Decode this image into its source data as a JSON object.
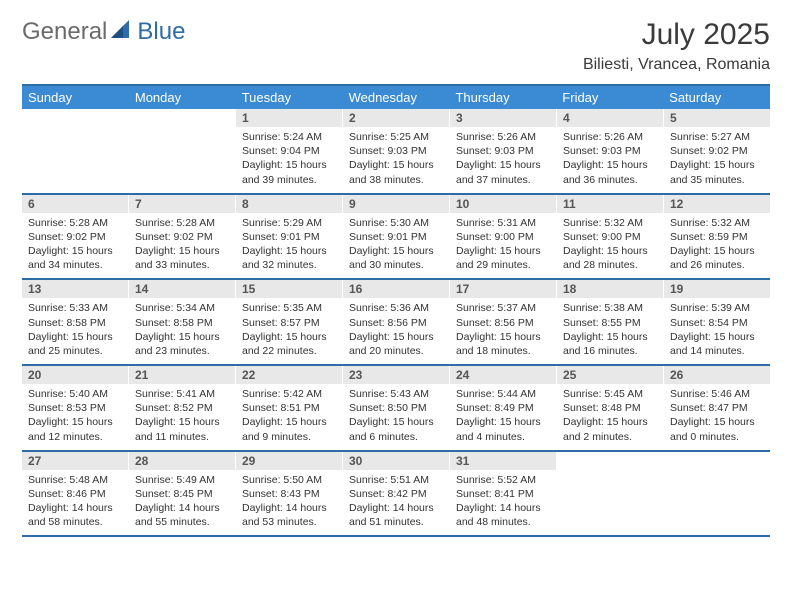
{
  "brand": {
    "text1": "General",
    "text2": "Blue"
  },
  "header": {
    "month_title": "July 2025",
    "location": "Biliesti, Vrancea, Romania"
  },
  "colors": {
    "header_bar": "#3b8bd4",
    "accent_border": "#2e6ca8",
    "daynum_bg": "#e8e8e8",
    "text": "#333333",
    "logo_gray": "#6b6b6b",
    "logo_blue": "#2e6ca8",
    "background": "#ffffff"
  },
  "layout": {
    "columns": 7,
    "rows": 5,
    "cell_font_pt": 10.5,
    "header_font_pt": 13
  },
  "weekdays": [
    "Sunday",
    "Monday",
    "Tuesday",
    "Wednesday",
    "Thursday",
    "Friday",
    "Saturday"
  ],
  "weeks": [
    [
      {
        "empty": true
      },
      {
        "empty": true
      },
      {
        "n": "1",
        "sunrise": "Sunrise: 5:24 AM",
        "sunset": "Sunset: 9:04 PM",
        "d1": "Daylight: 15 hours",
        "d2": "and 39 minutes."
      },
      {
        "n": "2",
        "sunrise": "Sunrise: 5:25 AM",
        "sunset": "Sunset: 9:03 PM",
        "d1": "Daylight: 15 hours",
        "d2": "and 38 minutes."
      },
      {
        "n": "3",
        "sunrise": "Sunrise: 5:26 AM",
        "sunset": "Sunset: 9:03 PM",
        "d1": "Daylight: 15 hours",
        "d2": "and 37 minutes."
      },
      {
        "n": "4",
        "sunrise": "Sunrise: 5:26 AM",
        "sunset": "Sunset: 9:03 PM",
        "d1": "Daylight: 15 hours",
        "d2": "and 36 minutes."
      },
      {
        "n": "5",
        "sunrise": "Sunrise: 5:27 AM",
        "sunset": "Sunset: 9:02 PM",
        "d1": "Daylight: 15 hours",
        "d2": "and 35 minutes."
      }
    ],
    [
      {
        "n": "6",
        "sunrise": "Sunrise: 5:28 AM",
        "sunset": "Sunset: 9:02 PM",
        "d1": "Daylight: 15 hours",
        "d2": "and 34 minutes."
      },
      {
        "n": "7",
        "sunrise": "Sunrise: 5:28 AM",
        "sunset": "Sunset: 9:02 PM",
        "d1": "Daylight: 15 hours",
        "d2": "and 33 minutes."
      },
      {
        "n": "8",
        "sunrise": "Sunrise: 5:29 AM",
        "sunset": "Sunset: 9:01 PM",
        "d1": "Daylight: 15 hours",
        "d2": "and 32 minutes."
      },
      {
        "n": "9",
        "sunrise": "Sunrise: 5:30 AM",
        "sunset": "Sunset: 9:01 PM",
        "d1": "Daylight: 15 hours",
        "d2": "and 30 minutes."
      },
      {
        "n": "10",
        "sunrise": "Sunrise: 5:31 AM",
        "sunset": "Sunset: 9:00 PM",
        "d1": "Daylight: 15 hours",
        "d2": "and 29 minutes."
      },
      {
        "n": "11",
        "sunrise": "Sunrise: 5:32 AM",
        "sunset": "Sunset: 9:00 PM",
        "d1": "Daylight: 15 hours",
        "d2": "and 28 minutes."
      },
      {
        "n": "12",
        "sunrise": "Sunrise: 5:32 AM",
        "sunset": "Sunset: 8:59 PM",
        "d1": "Daylight: 15 hours",
        "d2": "and 26 minutes."
      }
    ],
    [
      {
        "n": "13",
        "sunrise": "Sunrise: 5:33 AM",
        "sunset": "Sunset: 8:58 PM",
        "d1": "Daylight: 15 hours",
        "d2": "and 25 minutes."
      },
      {
        "n": "14",
        "sunrise": "Sunrise: 5:34 AM",
        "sunset": "Sunset: 8:58 PM",
        "d1": "Daylight: 15 hours",
        "d2": "and 23 minutes."
      },
      {
        "n": "15",
        "sunrise": "Sunrise: 5:35 AM",
        "sunset": "Sunset: 8:57 PM",
        "d1": "Daylight: 15 hours",
        "d2": "and 22 minutes."
      },
      {
        "n": "16",
        "sunrise": "Sunrise: 5:36 AM",
        "sunset": "Sunset: 8:56 PM",
        "d1": "Daylight: 15 hours",
        "d2": "and 20 minutes."
      },
      {
        "n": "17",
        "sunrise": "Sunrise: 5:37 AM",
        "sunset": "Sunset: 8:56 PM",
        "d1": "Daylight: 15 hours",
        "d2": "and 18 minutes."
      },
      {
        "n": "18",
        "sunrise": "Sunrise: 5:38 AM",
        "sunset": "Sunset: 8:55 PM",
        "d1": "Daylight: 15 hours",
        "d2": "and 16 minutes."
      },
      {
        "n": "19",
        "sunrise": "Sunrise: 5:39 AM",
        "sunset": "Sunset: 8:54 PM",
        "d1": "Daylight: 15 hours",
        "d2": "and 14 minutes."
      }
    ],
    [
      {
        "n": "20",
        "sunrise": "Sunrise: 5:40 AM",
        "sunset": "Sunset: 8:53 PM",
        "d1": "Daylight: 15 hours",
        "d2": "and 12 minutes."
      },
      {
        "n": "21",
        "sunrise": "Sunrise: 5:41 AM",
        "sunset": "Sunset: 8:52 PM",
        "d1": "Daylight: 15 hours",
        "d2": "and 11 minutes."
      },
      {
        "n": "22",
        "sunrise": "Sunrise: 5:42 AM",
        "sunset": "Sunset: 8:51 PM",
        "d1": "Daylight: 15 hours",
        "d2": "and 9 minutes."
      },
      {
        "n": "23",
        "sunrise": "Sunrise: 5:43 AM",
        "sunset": "Sunset: 8:50 PM",
        "d1": "Daylight: 15 hours",
        "d2": "and 6 minutes."
      },
      {
        "n": "24",
        "sunrise": "Sunrise: 5:44 AM",
        "sunset": "Sunset: 8:49 PM",
        "d1": "Daylight: 15 hours",
        "d2": "and 4 minutes."
      },
      {
        "n": "25",
        "sunrise": "Sunrise: 5:45 AM",
        "sunset": "Sunset: 8:48 PM",
        "d1": "Daylight: 15 hours",
        "d2": "and 2 minutes."
      },
      {
        "n": "26",
        "sunrise": "Sunrise: 5:46 AM",
        "sunset": "Sunset: 8:47 PM",
        "d1": "Daylight: 15 hours",
        "d2": "and 0 minutes."
      }
    ],
    [
      {
        "n": "27",
        "sunrise": "Sunrise: 5:48 AM",
        "sunset": "Sunset: 8:46 PM",
        "d1": "Daylight: 14 hours",
        "d2": "and 58 minutes."
      },
      {
        "n": "28",
        "sunrise": "Sunrise: 5:49 AM",
        "sunset": "Sunset: 8:45 PM",
        "d1": "Daylight: 14 hours",
        "d2": "and 55 minutes."
      },
      {
        "n": "29",
        "sunrise": "Sunrise: 5:50 AM",
        "sunset": "Sunset: 8:43 PM",
        "d1": "Daylight: 14 hours",
        "d2": "and 53 minutes."
      },
      {
        "n": "30",
        "sunrise": "Sunrise: 5:51 AM",
        "sunset": "Sunset: 8:42 PM",
        "d1": "Daylight: 14 hours",
        "d2": "and 51 minutes."
      },
      {
        "n": "31",
        "sunrise": "Sunrise: 5:52 AM",
        "sunset": "Sunset: 8:41 PM",
        "d1": "Daylight: 14 hours",
        "d2": "and 48 minutes."
      },
      {
        "empty": true
      },
      {
        "empty": true
      }
    ]
  ]
}
